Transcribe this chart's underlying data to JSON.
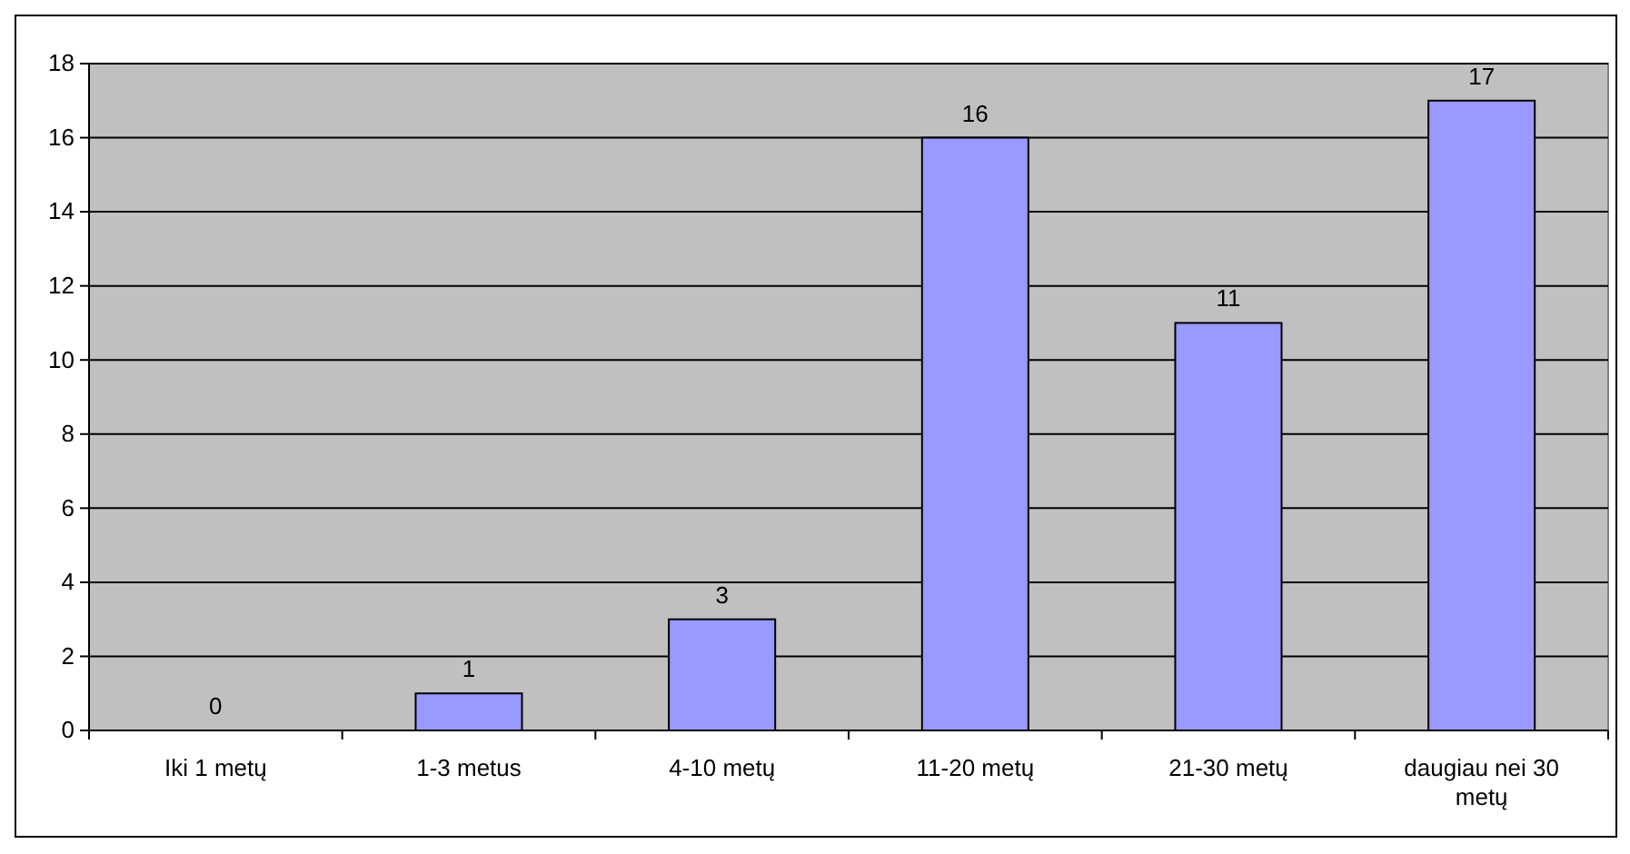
{
  "chart_data": {
    "type": "bar",
    "categories": [
      "Iki 1 metų",
      "1-3 metus",
      "4-10 metų",
      "11-20 metų",
      "21-30 metų",
      "daugiau nei 30 metų"
    ],
    "values": [
      0,
      1,
      3,
      16,
      11,
      17
    ],
    "color": "#9999ff",
    "ylim": [
      0,
      18
    ],
    "yticks": [
      0,
      2,
      4,
      6,
      8,
      10,
      12,
      14,
      16,
      18
    ],
    "grid": "y",
    "data_labels": true
  }
}
